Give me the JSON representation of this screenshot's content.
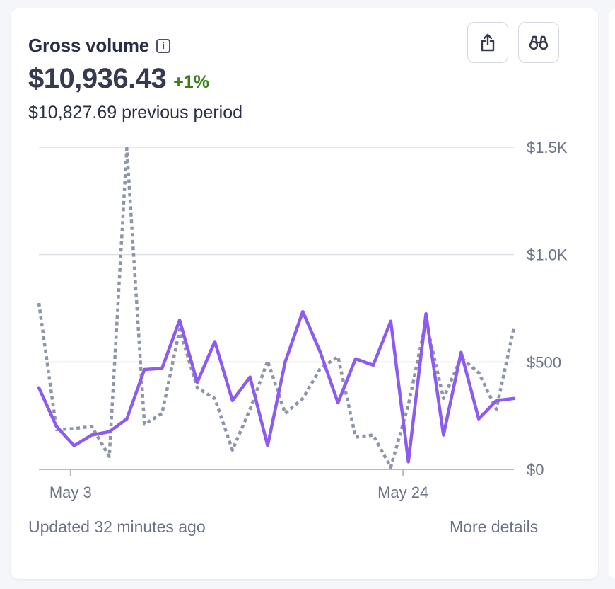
{
  "card": {
    "title": "Gross volume",
    "info_icon": "info-icon",
    "value": "$10,936.43",
    "change": "+1%",
    "previous": "$10,827.69 previous period",
    "share_icon": "share-icon",
    "explore_icon": "binoculars-icon",
    "updated": "Updated 32 minutes ago",
    "more_details": "More details"
  },
  "colors": {
    "current_series": "#8c5cf0",
    "previous_series": "#8d96a8",
    "change_positive": "#3a7d1c",
    "grid": "#dde0e6",
    "axis": "#b4bac6"
  },
  "chart_data": {
    "type": "line",
    "x_range": [
      1,
      31
    ],
    "x_tick_labels": [
      {
        "x": 3,
        "label": "May 3"
      },
      {
        "x": 24,
        "label": "May 24"
      }
    ],
    "y_ticks": [
      {
        "value": 0,
        "label": "$0"
      },
      {
        "value": 500,
        "label": "$500"
      },
      {
        "value": 1000,
        "label": "$1.0K"
      },
      {
        "value": 1500,
        "label": "$1.5K"
      }
    ],
    "ylim": [
      0,
      1500
    ],
    "grid": true,
    "series": [
      {
        "style": "solid",
        "values": [
          380,
          200,
          110,
          160,
          175,
          235,
          465,
          470,
          695,
          405,
          595,
          320,
          430,
          110,
          500,
          735,
          545,
          310,
          515,
          485,
          690,
          35,
          725,
          160,
          545,
          235,
          320,
          330
        ]
      },
      {
        "style": "dotted",
        "values": [
          775,
          185,
          190,
          200,
          60,
          1495,
          210,
          260,
          650,
          380,
          330,
          90,
          280,
          505,
          260,
          330,
          470,
          525,
          150,
          160,
          10,
          300,
          690,
          330,
          520,
          450,
          280,
          660
        ]
      }
    ]
  }
}
